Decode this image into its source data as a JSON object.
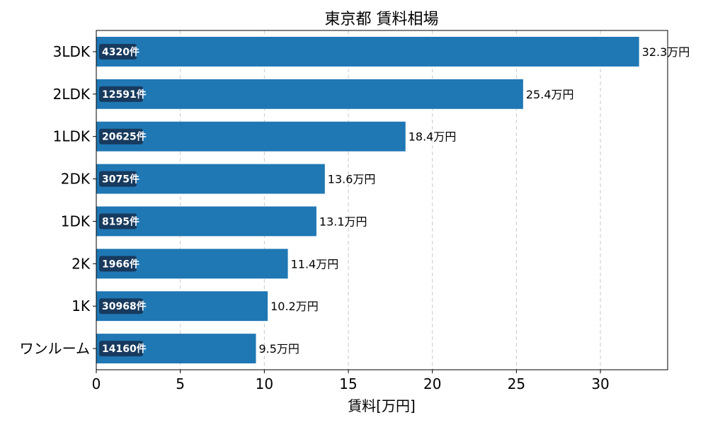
{
  "chart_data": {
    "type": "bar",
    "orientation": "horizontal",
    "title": "東京都 賃料相場",
    "xlabel": "賃料[万円]",
    "ylabel": "",
    "categories": [
      "3LDK",
      "2LDK",
      "1LDK",
      "2DK",
      "1DK",
      "2K",
      "1K",
      "ワンルーム"
    ],
    "values": [
      32.3,
      25.4,
      18.4,
      13.6,
      13.1,
      11.4,
      10.2,
      9.5
    ],
    "value_labels": [
      "32.3万円",
      "25.4万円",
      "18.4万円",
      "13.6万円",
      "13.1万円",
      "11.4万円",
      "10.2万円",
      "9.5万円"
    ],
    "counts": [
      "4320件",
      "12591件",
      "20625件",
      "3075件",
      "8195件",
      "1966件",
      "30968件",
      "14160件"
    ],
    "xlim": [
      0,
      34
    ],
    "xticks": [
      0,
      5,
      10,
      15,
      20,
      25,
      30
    ],
    "x_grid": true,
    "colors": {
      "bar": "#1f77b4",
      "count_box": "#173a5e",
      "grid": "#c8c8c8"
    }
  }
}
